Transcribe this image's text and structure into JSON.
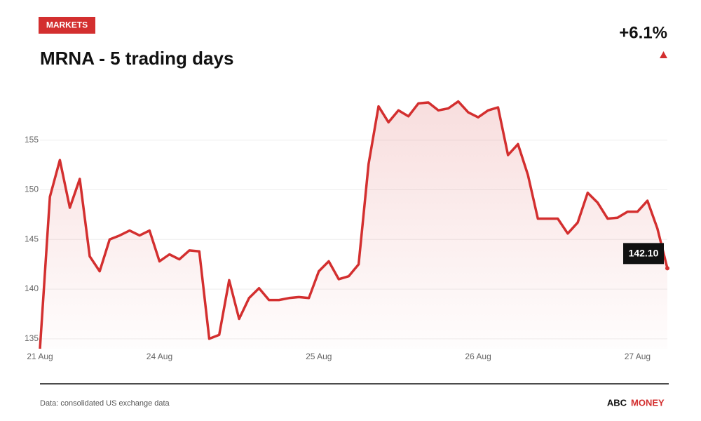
{
  "badge": "MARKETS",
  "change": "+6.1%",
  "footer": {
    "source": "Data: consolidated US exchange data",
    "brand_1": "ABC",
    "brand_2": "MONEY"
  },
  "chart_data": {
    "type": "line",
    "title": "MRNA - 5 trading days",
    "categories": [
      "21 Aug",
      null,
      null,
      null,
      null,
      null,
      null,
      null,
      null,
      null,
      null,
      null,
      "24 Aug",
      null,
      null,
      null,
      null,
      null,
      null,
      null,
      null,
      null,
      null,
      null,
      null,
      null,
      null,
      null,
      "25 Aug",
      null,
      null,
      null,
      null,
      null,
      null,
      null,
      null,
      null,
      null,
      null,
      null,
      null,
      null,
      null,
      "26 Aug",
      null,
      null,
      null,
      null,
      null,
      null,
      null,
      null,
      null,
      null,
      null,
      null,
      null,
      null,
      null,
      "27 Aug",
      null,
      null,
      null
    ],
    "series": [
      {
        "name": "MRNA",
        "color": "#d32f2f",
        "values": [
          134.0,
          149.3,
          153.0,
          148.2,
          151.1,
          143.3,
          141.8,
          145.0,
          145.4,
          145.9,
          145.4,
          145.9,
          142.8,
          143.5,
          143.0,
          143.9,
          143.8,
          135.0,
          135.4,
          140.9,
          137.0,
          139.1,
          140.1,
          138.9,
          138.9,
          139.1,
          139.2,
          139.1,
          141.8,
          142.8,
          141.0,
          141.3,
          142.5,
          152.6,
          158.4,
          156.8,
          158.0,
          157.4,
          158.7,
          158.8,
          158.0,
          158.2,
          158.9,
          157.8,
          157.3,
          158.0,
          158.3,
          153.5,
          154.6,
          151.5,
          147.1,
          147.1,
          147.1,
          145.6,
          146.7,
          149.7,
          148.7,
          147.1,
          147.2,
          147.8,
          147.8,
          148.9,
          146.1,
          142.1
        ]
      }
    ],
    "end_label": "142.10",
    "ylim": [
      134,
      160
    ],
    "yticks": [
      135,
      140,
      145,
      150,
      155
    ],
    "grid": true
  }
}
